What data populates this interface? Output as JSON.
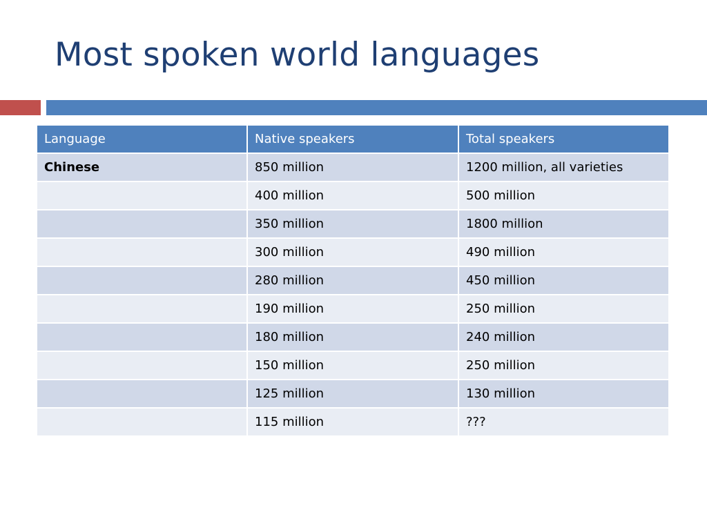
{
  "slide": {
    "title": "Most spoken world languages"
  },
  "table": {
    "headers": [
      "Language",
      "Native speakers",
      "Total speakers"
    ],
    "rows": [
      {
        "language": "Chinese",
        "native": "850 million",
        "total": "1200 million, all varieties"
      },
      {
        "language": "",
        "native": "400 million",
        "total": "500 million"
      },
      {
        "language": "",
        "native": "350 million",
        "total": "1800 million"
      },
      {
        "language": "",
        "native": "300 million",
        "total": "490 million"
      },
      {
        "language": "",
        "native": "280 million",
        "total": "450 million"
      },
      {
        "language": "",
        "native": "190 million",
        "total": "250 million"
      },
      {
        "language": "",
        "native": "180 million",
        "total": "240 million"
      },
      {
        "language": "",
        "native": "150 million",
        "total": "250 million"
      },
      {
        "language": "",
        "native": "125 million",
        "total": "130 million"
      },
      {
        "language": "",
        "native": "115 million",
        "total": "???"
      }
    ]
  },
  "colors": {
    "title": "#1f3f73",
    "accent_red": "#c0504d",
    "accent_blue": "#4f81bd",
    "row_dark": "#d0d8e8",
    "row_light": "#e9edf4"
  }
}
